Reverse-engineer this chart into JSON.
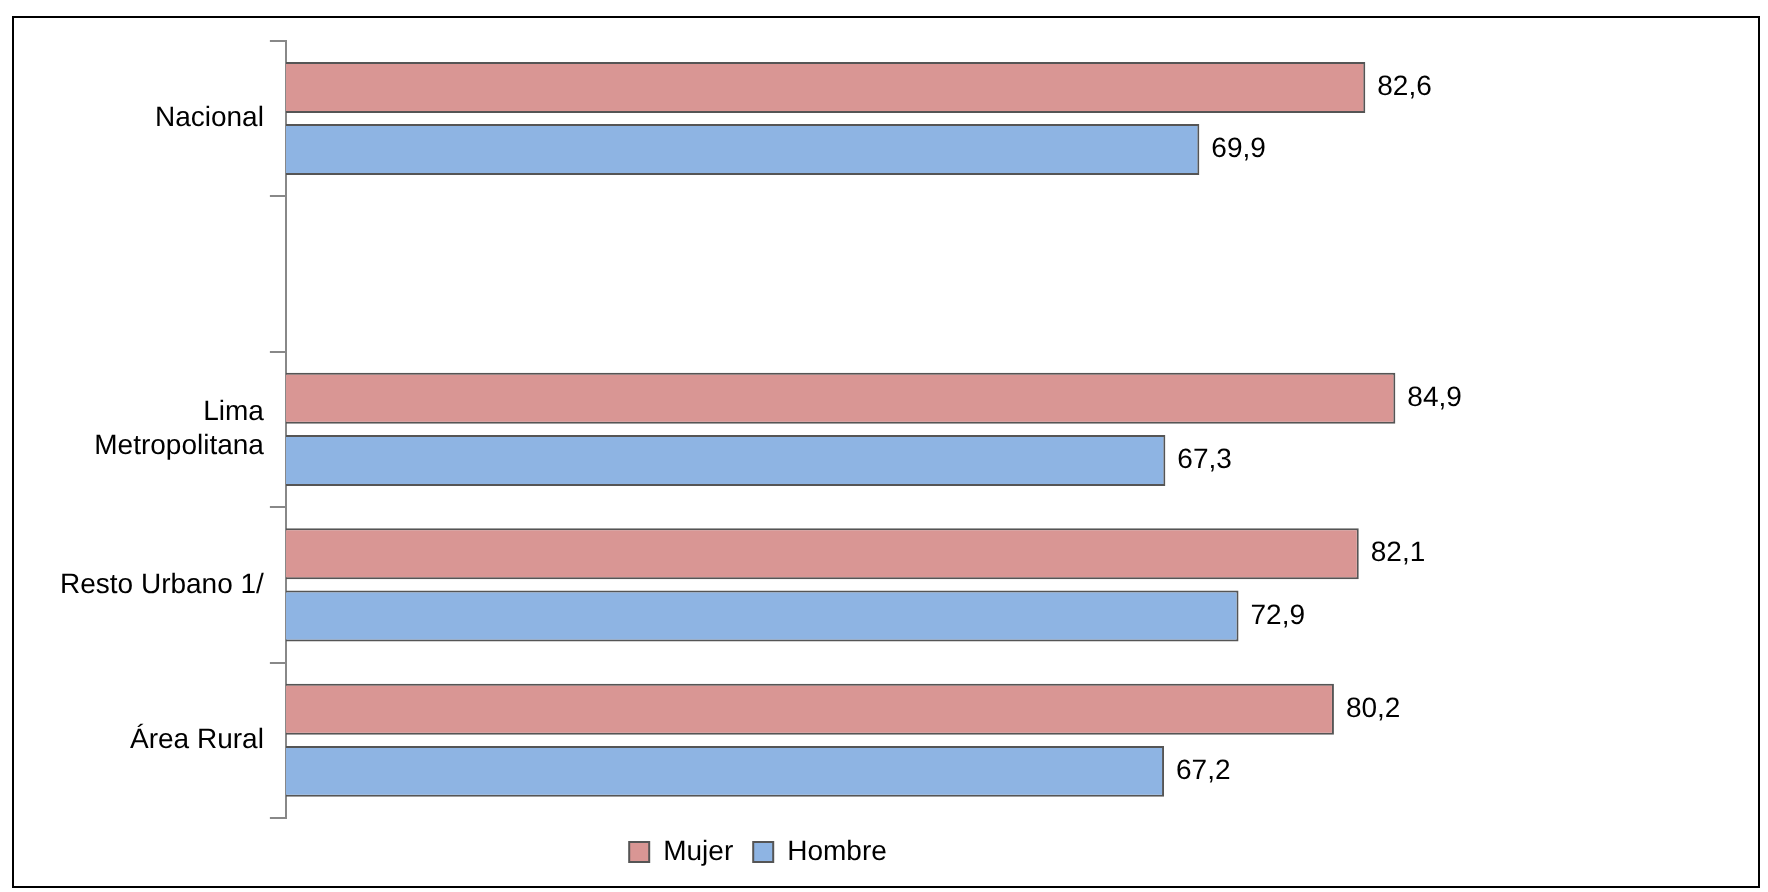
{
  "chart_data": {
    "type": "bar",
    "orientation": "horizontal",
    "categories": [
      "Nacional",
      null,
      "Lima Metropolitana",
      "Resto Urbano 1/",
      "Área Rural"
    ],
    "series": [
      {
        "name": "Mujer",
        "color": "#d99694",
        "values": [
          82.6,
          null,
          84.9,
          82.1,
          80.2
        ],
        "value_labels": [
          "82,6",
          null,
          "84,9",
          "82,1",
          "80,2"
        ]
      },
      {
        "name": "Hombre",
        "color": "#8eb4e3",
        "values": [
          69.9,
          null,
          67.3,
          72.9,
          67.2
        ],
        "value_labels": [
          "69,9",
          null,
          "67,3",
          "72,9",
          "67,2"
        ]
      }
    ],
    "tick_labels": "y",
    "legend": "bottom",
    "grid": false
  }
}
